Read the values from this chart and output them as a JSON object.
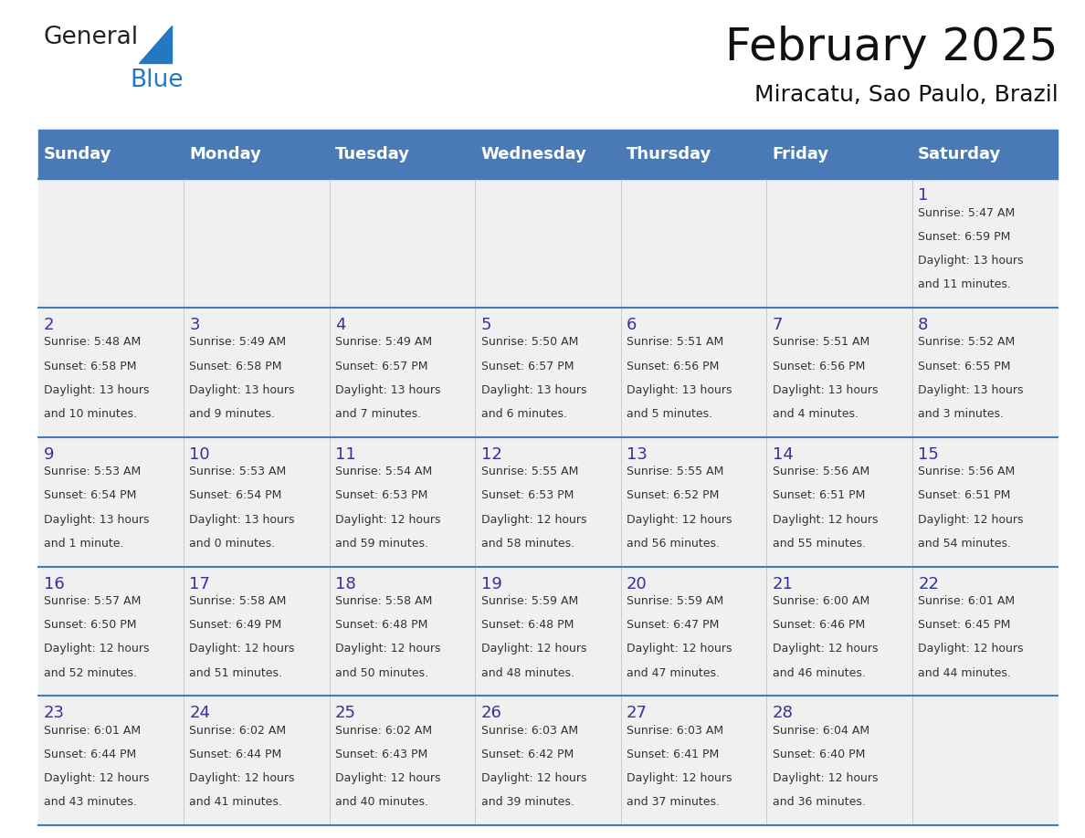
{
  "title": "February 2025",
  "subtitle": "Miracatu, Sao Paulo, Brazil",
  "header_bg": "#4a7ab5",
  "header_text": "#ffffff",
  "row_bg": "#f0f0f0",
  "border_color": "#4a7ab5",
  "day_headers": [
    "Sunday",
    "Monday",
    "Tuesday",
    "Wednesday",
    "Thursday",
    "Friday",
    "Saturday"
  ],
  "calendar": [
    [
      null,
      null,
      null,
      null,
      null,
      null,
      {
        "day": "1",
        "sunrise": "5:47 AM",
        "sunset": "6:59 PM",
        "daylight": "13 hours",
        "daylight2": "and 11 minutes."
      }
    ],
    [
      {
        "day": "2",
        "sunrise": "5:48 AM",
        "sunset": "6:58 PM",
        "daylight": "13 hours",
        "daylight2": "and 10 minutes."
      },
      {
        "day": "3",
        "sunrise": "5:49 AM",
        "sunset": "6:58 PM",
        "daylight": "13 hours",
        "daylight2": "and 9 minutes."
      },
      {
        "day": "4",
        "sunrise": "5:49 AM",
        "sunset": "6:57 PM",
        "daylight": "13 hours",
        "daylight2": "and 7 minutes."
      },
      {
        "day": "5",
        "sunrise": "5:50 AM",
        "sunset": "6:57 PM",
        "daylight": "13 hours",
        "daylight2": "and 6 minutes."
      },
      {
        "day": "6",
        "sunrise": "5:51 AM",
        "sunset": "6:56 PM",
        "daylight": "13 hours",
        "daylight2": "and 5 minutes."
      },
      {
        "day": "7",
        "sunrise": "5:51 AM",
        "sunset": "6:56 PM",
        "daylight": "13 hours",
        "daylight2": "and 4 minutes."
      },
      {
        "day": "8",
        "sunrise": "5:52 AM",
        "sunset": "6:55 PM",
        "daylight": "13 hours",
        "daylight2": "and 3 minutes."
      }
    ],
    [
      {
        "day": "9",
        "sunrise": "5:53 AM",
        "sunset": "6:54 PM",
        "daylight": "13 hours",
        "daylight2": "and 1 minute."
      },
      {
        "day": "10",
        "sunrise": "5:53 AM",
        "sunset": "6:54 PM",
        "daylight": "13 hours",
        "daylight2": "and 0 minutes."
      },
      {
        "day": "11",
        "sunrise": "5:54 AM",
        "sunset": "6:53 PM",
        "daylight": "12 hours",
        "daylight2": "and 59 minutes."
      },
      {
        "day": "12",
        "sunrise": "5:55 AM",
        "sunset": "6:53 PM",
        "daylight": "12 hours",
        "daylight2": "and 58 minutes."
      },
      {
        "day": "13",
        "sunrise": "5:55 AM",
        "sunset": "6:52 PM",
        "daylight": "12 hours",
        "daylight2": "and 56 minutes."
      },
      {
        "day": "14",
        "sunrise": "5:56 AM",
        "sunset": "6:51 PM",
        "daylight": "12 hours",
        "daylight2": "and 55 minutes."
      },
      {
        "day": "15",
        "sunrise": "5:56 AM",
        "sunset": "6:51 PM",
        "daylight": "12 hours",
        "daylight2": "and 54 minutes."
      }
    ],
    [
      {
        "day": "16",
        "sunrise": "5:57 AM",
        "sunset": "6:50 PM",
        "daylight": "12 hours",
        "daylight2": "and 52 minutes."
      },
      {
        "day": "17",
        "sunrise": "5:58 AM",
        "sunset": "6:49 PM",
        "daylight": "12 hours",
        "daylight2": "and 51 minutes."
      },
      {
        "day": "18",
        "sunrise": "5:58 AM",
        "sunset": "6:48 PM",
        "daylight": "12 hours",
        "daylight2": "and 50 minutes."
      },
      {
        "day": "19",
        "sunrise": "5:59 AM",
        "sunset": "6:48 PM",
        "daylight": "12 hours",
        "daylight2": "and 48 minutes."
      },
      {
        "day": "20",
        "sunrise": "5:59 AM",
        "sunset": "6:47 PM",
        "daylight": "12 hours",
        "daylight2": "and 47 minutes."
      },
      {
        "day": "21",
        "sunrise": "6:00 AM",
        "sunset": "6:46 PM",
        "daylight": "12 hours",
        "daylight2": "and 46 minutes."
      },
      {
        "day": "22",
        "sunrise": "6:01 AM",
        "sunset": "6:45 PM",
        "daylight": "12 hours",
        "daylight2": "and 44 minutes."
      }
    ],
    [
      {
        "day": "23",
        "sunrise": "6:01 AM",
        "sunset": "6:44 PM",
        "daylight": "12 hours",
        "daylight2": "and 43 minutes."
      },
      {
        "day": "24",
        "sunrise": "6:02 AM",
        "sunset": "6:44 PM",
        "daylight": "12 hours",
        "daylight2": "and 41 minutes."
      },
      {
        "day": "25",
        "sunrise": "6:02 AM",
        "sunset": "6:43 PM",
        "daylight": "12 hours",
        "daylight2": "and 40 minutes."
      },
      {
        "day": "26",
        "sunrise": "6:03 AM",
        "sunset": "6:42 PM",
        "daylight": "12 hours",
        "daylight2": "and 39 minutes."
      },
      {
        "day": "27",
        "sunrise": "6:03 AM",
        "sunset": "6:41 PM",
        "daylight": "12 hours",
        "daylight2": "and 37 minutes."
      },
      {
        "day": "28",
        "sunrise": "6:04 AM",
        "sunset": "6:40 PM",
        "daylight": "12 hours",
        "daylight2": "and 36 minutes."
      },
      null
    ]
  ],
  "logo_text1": "General",
  "logo_text2": "Blue",
  "logo_color1": "#222222",
  "logo_color2": "#2478c3",
  "logo_tri_color": "#2478c3",
  "title_fontsize": 36,
  "subtitle_fontsize": 18,
  "day_header_fontsize": 13,
  "day_num_fontsize": 13,
  "info_fontsize": 9
}
